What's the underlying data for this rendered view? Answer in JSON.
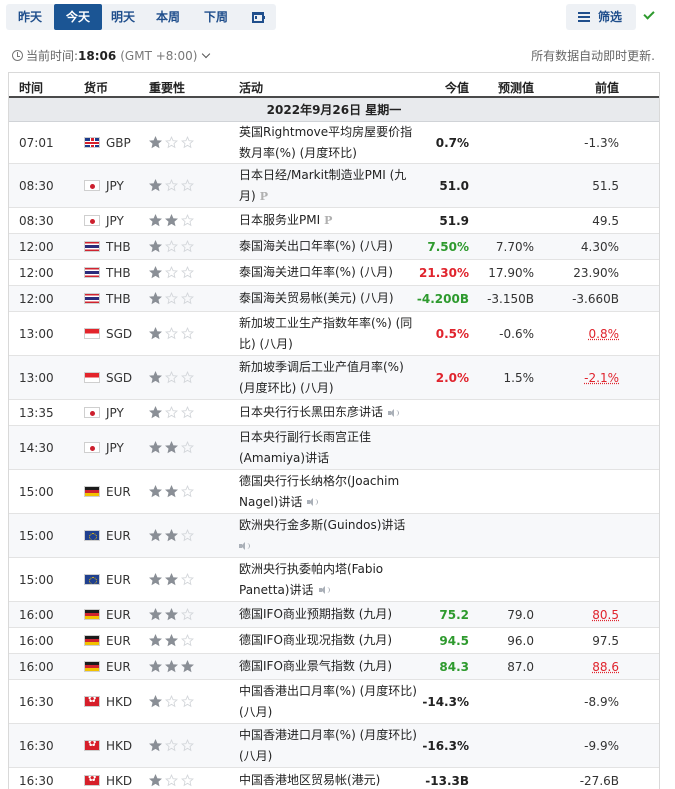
{
  "tabs": [
    {
      "label": "昨天",
      "width": 48,
      "active": false
    },
    {
      "label": "今天",
      "width": 48,
      "active": true
    },
    {
      "label": "明天",
      "width": 42,
      "active": false
    },
    {
      "label": "本周",
      "width": 48,
      "active": false
    },
    {
      "label": "下周",
      "width": 48,
      "active": false
    }
  ],
  "tab_calendar_icon": "calendar-icon",
  "filter": {
    "label": "筛选",
    "icon": "filter-icon"
  },
  "confirm_icon": "check-icon",
  "timebar": {
    "label": "当前时间:",
    "time": "18:06",
    "timezone": "(GMT +8:00)"
  },
  "autoupdate": "所有数据自动即时更新.",
  "columns": {
    "time": "时间",
    "currency": "货币",
    "importance": "重要性",
    "event": "活动",
    "actual": "今值",
    "forecast": "预测值",
    "previous": "前值"
  },
  "day_header": "2022年9月26日 星期一",
  "colors": {
    "accent": "#1b5594",
    "positive": "#2e9a2e",
    "negative": "#e0242d",
    "star_on": "#8a8f96",
    "star_off": "#d3d6da"
  },
  "events": [
    {
      "time": "07:01",
      "flag": "gb",
      "currency": "GBP",
      "stars": 1,
      "event": "英国Rightmove平均房屋要价指数月率(%) (月度环比)",
      "icon": "",
      "actual": "0.7%",
      "actual_tone": "neu",
      "forecast": "",
      "previous": "-1.3%",
      "prev_tone": "",
      "h": 42
    },
    {
      "time": "08:30",
      "flag": "jp",
      "currency": "JPY",
      "stars": 1,
      "event": "日本日经/Markit制造业PMI (九月)",
      "icon": "prelim",
      "actual": "51.0",
      "actual_tone": "neu",
      "forecast": "",
      "previous": "51.5",
      "prev_tone": "",
      "h": 44
    },
    {
      "time": "08:30",
      "flag": "jp",
      "currency": "JPY",
      "stars": 2,
      "event": "日本服务业PMI",
      "icon": "prelim",
      "actual": "51.9",
      "actual_tone": "neu",
      "forecast": "",
      "previous": "49.5",
      "prev_tone": "",
      "h": 26
    },
    {
      "time": "12:00",
      "flag": "th",
      "currency": "THB",
      "stars": 1,
      "event": "泰国海关出口年率(%) (八月)",
      "icon": "",
      "actual": "7.50%",
      "actual_tone": "pos",
      "forecast": "7.70%",
      "previous": "4.30%",
      "prev_tone": "",
      "h": 26
    },
    {
      "time": "12:00",
      "flag": "th",
      "currency": "THB",
      "stars": 1,
      "event": "泰国海关进口年率(%) (八月)",
      "icon": "",
      "actual": "21.30%",
      "actual_tone": "neg",
      "forecast": "17.90%",
      "previous": "23.90%",
      "prev_tone": "",
      "h": 26
    },
    {
      "time": "12:00",
      "flag": "th",
      "currency": "THB",
      "stars": 1,
      "event": "泰国海关贸易帐(美元) (八月)",
      "icon": "",
      "actual": "-4.200B",
      "actual_tone": "pos",
      "forecast": "-3.150B",
      "previous": "-3.660B",
      "prev_tone": "",
      "h": 26
    },
    {
      "time": "13:00",
      "flag": "sg",
      "currency": "SGD",
      "stars": 1,
      "event": "新加坡工业生产指数年率(%) (同比) (八月)",
      "icon": "",
      "actual": "0.5%",
      "actual_tone": "neg",
      "forecast": "-0.6%",
      "previous": "0.8%",
      "prev_tone": "neg",
      "h": 44
    },
    {
      "time": "13:00",
      "flag": "sg",
      "currency": "SGD",
      "stars": 1,
      "event": "新加坡季调后工业产值月率(%) (月度环比) (八月)",
      "icon": "",
      "actual": "2.0%",
      "actual_tone": "neg",
      "forecast": "1.5%",
      "previous": "-2.1%",
      "prev_tone": "neg",
      "h": 44
    },
    {
      "time": "13:35",
      "flag": "jp",
      "currency": "JPY",
      "stars": 1,
      "event": "日本央行行长黑田东彦讲话",
      "icon": "speech",
      "actual": "",
      "actual_tone": "neu",
      "forecast": "",
      "previous": "",
      "prev_tone": "",
      "h": 26
    },
    {
      "time": "14:30",
      "flag": "jp",
      "currency": "JPY",
      "stars": 2,
      "event": "日本央行副行长雨宫正佳(Amamiya)讲话",
      "icon": "",
      "actual": "",
      "actual_tone": "neu",
      "forecast": "",
      "previous": "",
      "prev_tone": "",
      "h": 44
    },
    {
      "time": "15:00",
      "flag": "de",
      "currency": "EUR",
      "stars": 2,
      "event": "德国央行行长纳格尔(Joachim Nagel)讲话",
      "icon": "speech",
      "actual": "",
      "actual_tone": "neu",
      "forecast": "",
      "previous": "",
      "prev_tone": "",
      "h": 44
    },
    {
      "time": "15:00",
      "flag": "eu",
      "currency": "EUR",
      "stars": 2,
      "event": "欧洲央行金多斯(Guindos)讲话",
      "icon": "speech-newline",
      "actual": "",
      "actual_tone": "neu",
      "forecast": "",
      "previous": "",
      "prev_tone": "",
      "h": 44
    },
    {
      "time": "15:00",
      "flag": "eu",
      "currency": "EUR",
      "stars": 2,
      "event": "欧洲央行执委帕内塔(Fabio Panetta)讲话",
      "icon": "speech",
      "actual": "",
      "actual_tone": "neu",
      "forecast": "",
      "previous": "",
      "prev_tone": "",
      "h": 44
    },
    {
      "time": "16:00",
      "flag": "de",
      "currency": "EUR",
      "stars": 2,
      "event": "德国IFO商业预期指数 (九月)",
      "icon": "",
      "actual": "75.2",
      "actual_tone": "pos",
      "forecast": "79.0",
      "previous": "80.5",
      "prev_tone": "neg",
      "h": 26
    },
    {
      "time": "16:00",
      "flag": "de",
      "currency": "EUR",
      "stars": 2,
      "event": "德国IFO商业现况指数 (九月)",
      "icon": "",
      "actual": "94.5",
      "actual_tone": "pos",
      "forecast": "96.0",
      "previous": "97.5",
      "prev_tone": "",
      "h": 26
    },
    {
      "time": "16:00",
      "flag": "de",
      "currency": "EUR",
      "stars": 3,
      "event": "德国IFO商业景气指数 (九月)",
      "icon": "",
      "actual": "84.3",
      "actual_tone": "pos",
      "forecast": "87.0",
      "previous": "88.6",
      "prev_tone": "neg",
      "h": 26
    },
    {
      "time": "16:30",
      "flag": "hk",
      "currency": "HKD",
      "stars": 1,
      "event": "中国香港出口月率(%) (月度环比) (八月)",
      "icon": "",
      "actual": "-14.3%",
      "actual_tone": "neu",
      "forecast": "",
      "previous": "-8.9%",
      "prev_tone": "",
      "h": 44
    },
    {
      "time": "16:30",
      "flag": "hk",
      "currency": "HKD",
      "stars": 1,
      "event": "中国香港进口月率(%) (月度环比) (八月)",
      "icon": "",
      "actual": "-16.3%",
      "actual_tone": "neu",
      "forecast": "",
      "previous": "-9.9%",
      "prev_tone": "",
      "h": 44
    },
    {
      "time": "16:30",
      "flag": "hk",
      "currency": "HKD",
      "stars": 1,
      "event": "中国香港地区贸易帐(港元)",
      "icon": "",
      "actual": "-13.3B",
      "actual_tone": "neu",
      "forecast": "",
      "previous": "-27.6B",
      "prev_tone": "",
      "h": 26
    }
  ]
}
